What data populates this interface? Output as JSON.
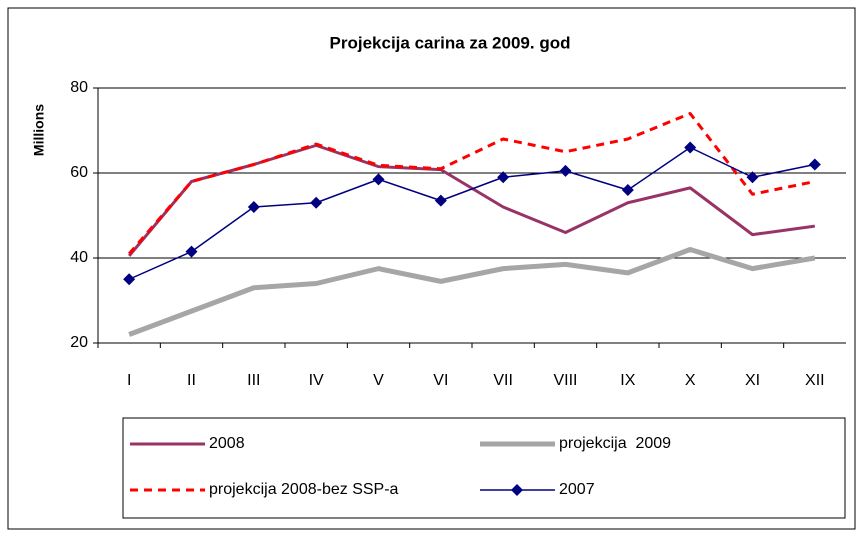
{
  "chart_data": {
    "type": "line",
    "title": "Projekcija carina za 2009. god",
    "y_label": "Millions",
    "categories": [
      "I",
      "II",
      "III",
      "IV",
      "V",
      "VI",
      "VII",
      "VIII",
      "IX",
      "X",
      "XI",
      "XII"
    ],
    "ylim": [
      20,
      80
    ],
    "yticks": [
      20,
      40,
      60,
      80
    ],
    "grid": true,
    "series": [
      {
        "name": "2008",
        "color": "#993366",
        "style": "solid",
        "values": [
          40.5,
          58,
          62,
          66.5,
          61.5,
          60.8,
          52,
          46,
          53,
          56.5,
          45.5,
          47.5
        ]
      },
      {
        "name": "projekcija  2009",
        "color": "#a6a6a6",
        "style": "thick",
        "values": [
          22,
          27.5,
          33,
          34,
          37.5,
          34.5,
          37.5,
          38.5,
          36.5,
          42,
          37.5,
          40
        ]
      },
      {
        "name": "projekcija 2008-bez SSP-a",
        "color": "#ff0000",
        "style": "dashed",
        "values": [
          41,
          58,
          62,
          66.8,
          61.8,
          61,
          68,
          65,
          68,
          74,
          55,
          58
        ]
      },
      {
        "name": "2007",
        "color": "#000080",
        "style": "diamond",
        "values": [
          35,
          41.5,
          52,
          53,
          58.5,
          53.5,
          59,
          60.5,
          56,
          66,
          59,
          62
        ]
      }
    ]
  }
}
